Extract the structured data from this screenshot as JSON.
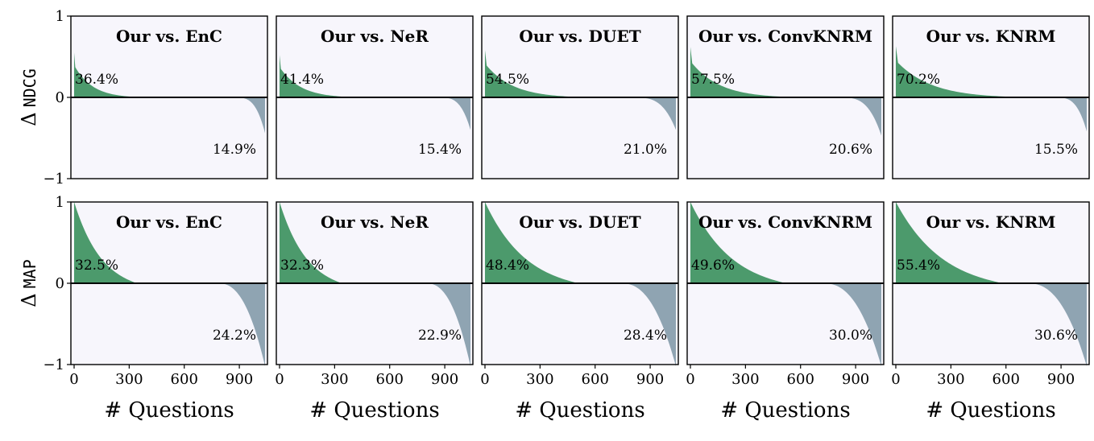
{
  "colors": {
    "positive": "#4c9a6c",
    "negative": "#8fa4b2",
    "panel_bg": "#f7f6fc",
    "axis": "#000000"
  },
  "chart_data": {
    "type": "area",
    "description_of_layout": "",
    "x_ticks": [
      "0",
      "300",
      "600",
      "900"
    ],
    "xlabel": "# Questions",
    "n_questions": 1040,
    "ylim": [
      -1,
      1
    ],
    "y_ticks": [
      "1",
      "0",
      "−1"
    ],
    "rows": [
      {
        "ylabel_delta": "Δ",
        "ylabel_metric": "NDCG",
        "panels": [
          {
            "title": "Our vs. EnC",
            "pos_label": "36.4%",
            "neg_label": "14.9%",
            "pos_frac": 0.364,
            "neg_frac": 0.149,
            "pos_peak": 0.55,
            "neg_peak": -0.42
          },
          {
            "title": "Our vs. NeR",
            "pos_label": "41.4%",
            "neg_label": "15.4%",
            "pos_frac": 0.414,
            "neg_frac": 0.154,
            "pos_peak": 0.52,
            "neg_peak": -0.38
          },
          {
            "title": "Our vs. DUET",
            "pos_label": "54.5%",
            "neg_label": "21.0%",
            "pos_frac": 0.545,
            "neg_frac": 0.21,
            "pos_peak": 0.58,
            "neg_peak": -0.38
          },
          {
            "title": "Our vs. ConvKNRM",
            "pos_label": "57.5%",
            "neg_label": "20.6%",
            "pos_frac": 0.575,
            "neg_frac": 0.206,
            "pos_peak": 0.62,
            "neg_peak": -0.45
          },
          {
            "title": "Our vs. KNRM",
            "pos_label": "70.2%",
            "neg_label": "15.5%",
            "pos_frac": 0.702,
            "neg_frac": 0.155,
            "pos_peak": 0.63,
            "neg_peak": -0.4
          }
        ]
      },
      {
        "ylabel_delta": "Δ",
        "ylabel_metric": "MAP",
        "panels": [
          {
            "title": "Our vs. EnC",
            "pos_label": "32.5%",
            "neg_label": "24.2%",
            "pos_frac": 0.325,
            "neg_frac": 0.242,
            "pos_peak": 1.0,
            "neg_peak": -1.0
          },
          {
            "title": "Our vs. NeR",
            "pos_label": "32.3%",
            "neg_label": "22.9%",
            "pos_frac": 0.323,
            "neg_frac": 0.229,
            "pos_peak": 1.0,
            "neg_peak": -1.0
          },
          {
            "title": "Our vs. DUET",
            "pos_label": "48.4%",
            "neg_label": "28.4%",
            "pos_frac": 0.484,
            "neg_frac": 0.284,
            "pos_peak": 1.0,
            "neg_peak": -1.0
          },
          {
            "title": "Our vs. ConvKNRM",
            "pos_label": "49.6%",
            "neg_label": "30.0%",
            "pos_frac": 0.496,
            "neg_frac": 0.3,
            "pos_peak": 1.0,
            "neg_peak": -1.0
          },
          {
            "title": "Our vs. KNRM",
            "pos_label": "55.4%",
            "neg_label": "30.6%",
            "pos_frac": 0.554,
            "neg_frac": 0.306,
            "pos_peak": 1.0,
            "neg_peak": -1.0
          }
        ]
      }
    ]
  }
}
